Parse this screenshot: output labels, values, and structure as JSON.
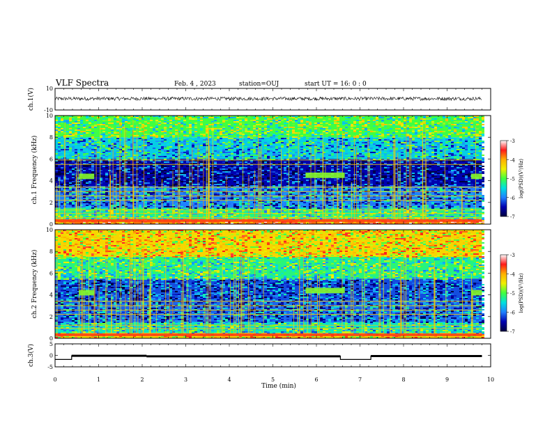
{
  "header": {
    "title": "VLF Spectra",
    "date": "Feb. 4 , 2023",
    "station": "station=OUJ",
    "start": "start UT =  16: 0  : 0"
  },
  "colorbar": {
    "label": "log(PSD)(V²/Hz)",
    "ticks": [
      "-3",
      "-4",
      "-5",
      "-6",
      "-7"
    ],
    "colors": [
      "#ffffff",
      "#ff1a1a",
      "#ffb000",
      "#f0f000",
      "#40ff40",
      "#00e0e0",
      "#2080ff",
      "#0000b0",
      "#000040"
    ]
  },
  "chart_data": [
    {
      "type": "line",
      "panel": "ch1-waveform",
      "ylabel": "ch.1(V)",
      "ylim": [
        -10,
        10
      ],
      "yticks": [
        "10",
        "-10"
      ],
      "x": [
        0,
        1,
        2,
        3,
        4,
        5,
        6,
        7,
        8,
        9,
        9.8
      ],
      "values": [
        0.5,
        0.6,
        0.4,
        0.5,
        0.6,
        0.5,
        0.4,
        0.5,
        0.6,
        0.5,
        0.5
      ]
    },
    {
      "type": "heatmap",
      "panel": "ch1-spectrogram",
      "ylabel": "ch.1 Frequency (kHz)",
      "ylim": [
        0,
        10
      ],
      "yticks": [
        "0",
        "2",
        "4",
        "6",
        "8",
        "10"
      ],
      "xlim": [
        0,
        10
      ],
      "colorbar_range": [
        -7,
        -3
      ],
      "band_levels": [
        {
          "f_from": 0,
          "f_to": 0.5,
          "level": -3.8
        },
        {
          "f_from": 0.5,
          "f_to": 1.5,
          "level": -5.2
        },
        {
          "f_from": 1.5,
          "f_to": 3.5,
          "level": -6.0
        },
        {
          "f_from": 3.5,
          "f_to": 6.0,
          "level": -6.5
        },
        {
          "f_from": 6.0,
          "f_to": 8.0,
          "level": -5.6
        },
        {
          "f_from": 8.0,
          "f_to": 10.0,
          "level": -5.0
        }
      ],
      "tone_lines_khz": [
        0.3,
        0.6,
        1.0,
        1.3,
        2.2,
        2.6,
        3.0,
        3.4,
        5.5,
        5.9
      ],
      "tone_blocks": [
        {
          "t_from": 0.55,
          "t_to": 0.9,
          "f": 4.4
        },
        {
          "t_from": 5.75,
          "t_to": 6.65,
          "f": 4.5
        },
        {
          "t_from": 9.55,
          "t_to": 9.8,
          "f": 4.4
        }
      ]
    },
    {
      "type": "heatmap",
      "panel": "ch2-spectrogram",
      "ylabel": "ch.2 Frequency (kHz)",
      "ylim": [
        0,
        10
      ],
      "yticks": [
        "0",
        "2",
        "4",
        "6",
        "8",
        "10"
      ],
      "xlim": [
        0,
        10
      ],
      "colorbar_range": [
        -7,
        -3
      ],
      "band_levels": [
        {
          "f_from": 0,
          "f_to": 0.5,
          "level": -4.2
        },
        {
          "f_from": 0.5,
          "f_to": 1.5,
          "level": -5.4
        },
        {
          "f_from": 1.5,
          "f_to": 3.5,
          "level": -6.1
        },
        {
          "f_from": 3.5,
          "f_to": 5.5,
          "level": -6.2
        },
        {
          "f_from": 5.5,
          "f_to": 7.5,
          "level": -5.2
        },
        {
          "f_from": 7.5,
          "f_to": 10.0,
          "level": -4.3
        }
      ],
      "tone_lines_khz": [
        0.4,
        0.9,
        1.2,
        2.2,
        2.6,
        3.0,
        3.4
      ],
      "tone_blocks": [
        {
          "t_from": 0.55,
          "t_to": 0.9,
          "f": 4.2
        },
        {
          "t_from": 5.75,
          "t_to": 6.65,
          "f": 4.4
        },
        {
          "t_from": 9.55,
          "t_to": 9.8,
          "f": 4.2
        }
      ]
    },
    {
      "type": "line",
      "panel": "ch3-level",
      "ylabel": "ch.3(V)",
      "ylim": [
        -5,
        5
      ],
      "yticks": [
        "5",
        "0",
        "-5"
      ],
      "x": [
        0,
        0.38,
        0.38,
        2.1,
        2.1,
        6.55,
        6.55,
        7.25,
        7.25,
        9.8
      ],
      "values": [
        -1.8,
        -1.8,
        -0.2,
        -0.2,
        -0.4,
        -0.4,
        -1.8,
        -1.8,
        -0.3,
        -0.3
      ]
    }
  ],
  "xaxis": {
    "label": "Time (min)",
    "ticks": [
      "0",
      "1",
      "2",
      "3",
      "4",
      "5",
      "6",
      "7",
      "8",
      "9",
      "10"
    ],
    "xlim": [
      0,
      10
    ]
  }
}
